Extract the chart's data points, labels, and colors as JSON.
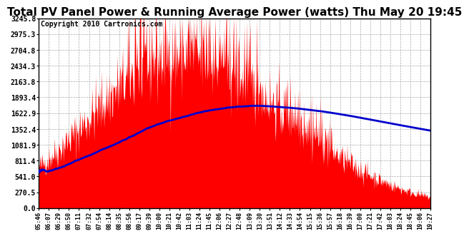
{
  "title": "Total PV Panel Power & Running Average Power (watts) Thu May 20 19:45",
  "copyright": "Copyright 2010 Cartronics.com",
  "yticks": [
    0.0,
    270.5,
    541.0,
    811.4,
    1081.9,
    1352.4,
    1622.9,
    1893.4,
    2163.8,
    2434.3,
    2704.8,
    2975.3,
    3245.8
  ],
  "ymax": 3245.8,
  "ymin": 0.0,
  "bar_color": "#ff0000",
  "line_color": "#0000cc",
  "background_color": "#ffffff",
  "grid_color": "#aaaaaa",
  "title_fontsize": 11,
  "copyright_fontsize": 7,
  "xtick_labels": [
    "05:46",
    "06:07",
    "06:29",
    "06:50",
    "07:11",
    "07:32",
    "07:54",
    "08:14",
    "08:35",
    "08:56",
    "09:17",
    "09:39",
    "10:00",
    "10:21",
    "10:42",
    "11:03",
    "11:24",
    "11:45",
    "12:06",
    "12:27",
    "12:48",
    "13:09",
    "13:30",
    "13:51",
    "14:12",
    "14:33",
    "14:54",
    "15:15",
    "15:36",
    "15:57",
    "16:18",
    "16:39",
    "17:00",
    "17:21",
    "17:42",
    "18:03",
    "18:24",
    "18:45",
    "19:06",
    "19:27"
  ]
}
